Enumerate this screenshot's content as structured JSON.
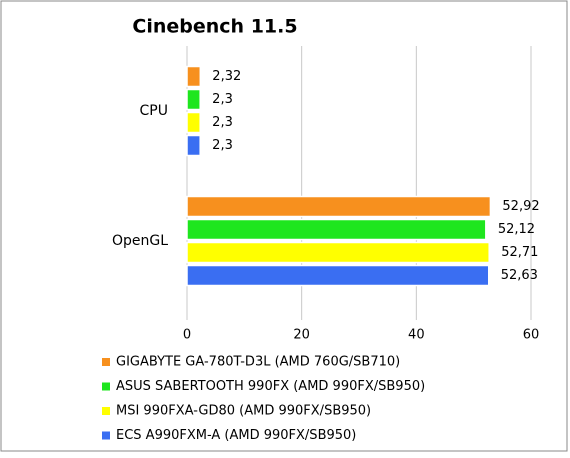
{
  "chart_data": {
    "type": "hbar",
    "title": "Cinebench 11.5",
    "categories": [
      "CPU",
      "OpenGL"
    ],
    "series": [
      {
        "name": "GIGABYTE GA-780T-D3L (AMD 760G/SB710)",
        "color": "#f7901e",
        "values": [
          2.32,
          52.92
        ],
        "value_labels": [
          "2,32",
          "52,92"
        ]
      },
      {
        "name": "ASUS SABERTOOTH 990FX (AMD 990FX/SB950)",
        "color": "#1ee61e",
        "values": [
          2.3,
          52.12
        ],
        "value_labels": [
          "2,3",
          "52,12"
        ]
      },
      {
        "name": "MSI 990FXA-GD80 (AMD 990FX/SB950)",
        "color": "#ffff00",
        "values": [
          2.3,
          52.71
        ],
        "value_labels": [
          "2,3",
          "52,71"
        ]
      },
      {
        "name": "ECS A990FXM-A (AMD 990FX/SB950)",
        "color": "#3a6ef2",
        "values": [
          2.3,
          52.63
        ],
        "value_labels": [
          "2,3",
          "52,63"
        ]
      }
    ],
    "xlim": [
      0,
      60
    ],
    "xticks": [
      0,
      20,
      40,
      60
    ],
    "grid": true
  }
}
